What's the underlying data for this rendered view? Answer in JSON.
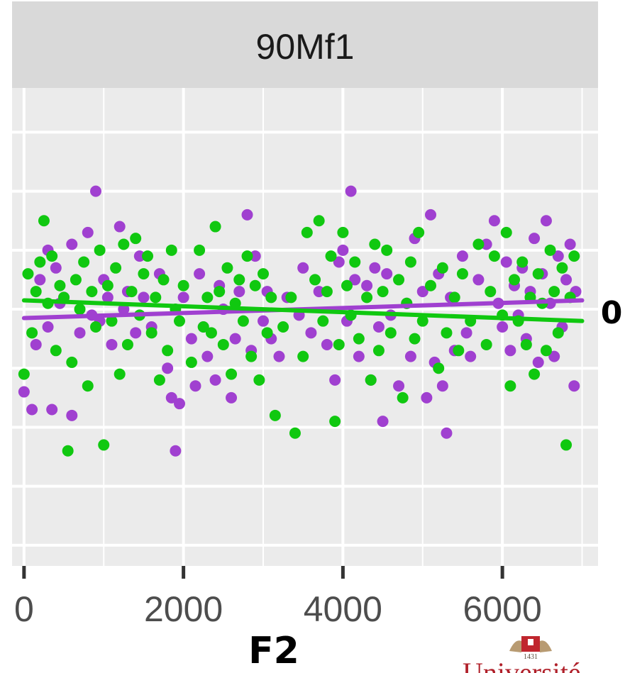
{
  "facet": {
    "title": "90Mf1"
  },
  "right_label": "0",
  "logo": {
    "text": "Université",
    "year": "1431"
  },
  "colors": {
    "purple": "#a040d0",
    "green": "#10c810",
    "panel_bg": "#ebebeb",
    "strip_bg": "#d9d9d9",
    "grid": "#ffffff"
  },
  "chart_data": {
    "type": "scatter",
    "title": "90Mf1",
    "xlabel": "F2",
    "ylabel": "",
    "xlim": [
      -150,
      7200
    ],
    "ylim": [
      -4.35,
      3.75
    ],
    "x_ticks": [
      0,
      2000,
      4000,
      6000
    ],
    "x_tick_labels": [
      "0",
      "2000",
      "4000",
      "6000"
    ],
    "y_gridlines": [
      -4,
      -3,
      -2,
      -1,
      0,
      1,
      2,
      3
    ],
    "grid": true,
    "series": [
      {
        "color": "#a040d0",
        "trend": {
          "x": [
            0,
            7000
          ],
          "y": [
            -0.15,
            0.15
          ]
        },
        "points": [
          [
            0,
            -1.4
          ],
          [
            100,
            -1.7
          ],
          [
            150,
            -0.6
          ],
          [
            200,
            0.5
          ],
          [
            300,
            1
          ],
          [
            300,
            -0.3
          ],
          [
            350,
            -1.7
          ],
          [
            400,
            0.7
          ],
          [
            450,
            0.1
          ],
          [
            500,
            0.2
          ],
          [
            600,
            -1.8
          ],
          [
            600,
            1.1
          ],
          [
            700,
            -0.4
          ],
          [
            800,
            1.3
          ],
          [
            850,
            -0.1
          ],
          [
            900,
            2
          ],
          [
            950,
            -0.2
          ],
          [
            1000,
            0.5
          ],
          [
            1050,
            0.2
          ],
          [
            1100,
            -0.6
          ],
          [
            1200,
            1.4
          ],
          [
            1250,
            0
          ],
          [
            1300,
            0.3
          ],
          [
            1400,
            -0.4
          ],
          [
            1450,
            0.9
          ],
          [
            1500,
            0.2
          ],
          [
            1600,
            -0.3
          ],
          [
            1700,
            0.6
          ],
          [
            1800,
            -1
          ],
          [
            1850,
            -1.5
          ],
          [
            1900,
            -2.4
          ],
          [
            1950,
            -1.6
          ],
          [
            2000,
            0.2
          ],
          [
            2100,
            -0.5
          ],
          [
            2150,
            -1.3
          ],
          [
            2200,
            0.6
          ],
          [
            2250,
            -0.3
          ],
          [
            2300,
            -0.8
          ],
          [
            2400,
            -1.2
          ],
          [
            2450,
            0.4
          ],
          [
            2500,
            0
          ],
          [
            2600,
            -1.5
          ],
          [
            2650,
            -0.5
          ],
          [
            2700,
            0.3
          ],
          [
            2800,
            1.6
          ],
          [
            2850,
            -0.7
          ],
          [
            2900,
            0.9
          ],
          [
            3000,
            -0.2
          ],
          [
            3050,
            0.3
          ],
          [
            3100,
            -0.5
          ],
          [
            3200,
            -0.8
          ],
          [
            3300,
            0.2
          ],
          [
            3450,
            -0.1
          ],
          [
            3500,
            0.7
          ],
          [
            3600,
            -0.4
          ],
          [
            3700,
            0.3
          ],
          [
            3800,
            -0.6
          ],
          [
            3900,
            -1.2
          ],
          [
            3950,
            0.8
          ],
          [
            4000,
            1
          ],
          [
            4050,
            -0.2
          ],
          [
            4100,
            2
          ],
          [
            4150,
            0.5
          ],
          [
            4200,
            -0.8
          ],
          [
            4300,
            0.4
          ],
          [
            4350,
            -1.2
          ],
          [
            4400,
            0.7
          ],
          [
            4450,
            -0.3
          ],
          [
            4500,
            -1.9
          ],
          [
            4550,
            0.6
          ],
          [
            4600,
            -0.1
          ],
          [
            4700,
            -1.3
          ],
          [
            4800,
            0.1
          ],
          [
            4850,
            -0.8
          ],
          [
            4900,
            1.2
          ],
          [
            5000,
            0.3
          ],
          [
            5050,
            -1.5
          ],
          [
            5100,
            1.6
          ],
          [
            5150,
            -0.9
          ],
          [
            5200,
            0.6
          ],
          [
            5250,
            -1.3
          ],
          [
            5300,
            -2.1
          ],
          [
            5350,
            0.2
          ],
          [
            5400,
            -0.7
          ],
          [
            5500,
            0.9
          ],
          [
            5550,
            -0.4
          ],
          [
            5600,
            -0.8
          ],
          [
            5700,
            0.5
          ],
          [
            5800,
            1.1
          ],
          [
            5900,
            1.5
          ],
          [
            5950,
            0.1
          ],
          [
            6000,
            -0.3
          ],
          [
            6050,
            0.8
          ],
          [
            6100,
            -0.7
          ],
          [
            6150,
            0.4
          ],
          [
            6200,
            -0.1
          ],
          [
            6250,
            0.7
          ],
          [
            6300,
            -0.5
          ],
          [
            6350,
            0.3
          ],
          [
            6400,
            1.2
          ],
          [
            6450,
            -0.9
          ],
          [
            6500,
            0.6
          ],
          [
            6550,
            1.5
          ],
          [
            6600,
            0.1
          ],
          [
            6650,
            -0.8
          ],
          [
            6700,
            0.9
          ],
          [
            6750,
            -0.3
          ],
          [
            6800,
            0.5
          ],
          [
            6850,
            1.1
          ],
          [
            6900,
            -1.3
          ],
          [
            6920,
            0.3
          ]
        ]
      },
      {
        "color": "#10c810",
        "trend": {
          "x": [
            0,
            7000
          ],
          "y": [
            0.15,
            -0.2
          ]
        },
        "points": [
          [
            0,
            -1.1
          ],
          [
            50,
            0.6
          ],
          [
            100,
            -0.4
          ],
          [
            150,
            0.3
          ],
          [
            200,
            0.8
          ],
          [
            250,
            1.5
          ],
          [
            300,
            0.1
          ],
          [
            350,
            0.9
          ],
          [
            400,
            -0.7
          ],
          [
            450,
            0.4
          ],
          [
            500,
            0.2
          ],
          [
            550,
            -2.4
          ],
          [
            600,
            -0.9
          ],
          [
            650,
            0.5
          ],
          [
            700,
            0
          ],
          [
            750,
            0.8
          ],
          [
            800,
            -1.3
          ],
          [
            850,
            0.3
          ],
          [
            900,
            -0.3
          ],
          [
            950,
            1
          ],
          [
            1000,
            -2.3
          ],
          [
            1050,
            0.4
          ],
          [
            1100,
            -0.2
          ],
          [
            1150,
            0.7
          ],
          [
            1200,
            -1.1
          ],
          [
            1250,
            1.1
          ],
          [
            1300,
            -0.6
          ],
          [
            1350,
            0.3
          ],
          [
            1400,
            1.2
          ],
          [
            1450,
            -0.1
          ],
          [
            1500,
            0.6
          ],
          [
            1550,
            0.9
          ],
          [
            1600,
            -0.4
          ],
          [
            1650,
            0.2
          ],
          [
            1700,
            -1.2
          ],
          [
            1750,
            0.5
          ],
          [
            1800,
            -0.7
          ],
          [
            1850,
            1
          ],
          [
            1900,
            0
          ],
          [
            1950,
            -0.2
          ],
          [
            2000,
            0.4
          ],
          [
            2100,
            -0.9
          ],
          [
            2200,
            1
          ],
          [
            2250,
            -0.3
          ],
          [
            2300,
            0.2
          ],
          [
            2350,
            -0.4
          ],
          [
            2400,
            1.4
          ],
          [
            2450,
            0.3
          ],
          [
            2500,
            -0.6
          ],
          [
            2550,
            0.7
          ],
          [
            2600,
            -1.1
          ],
          [
            2650,
            0.1
          ],
          [
            2700,
            0.5
          ],
          [
            2750,
            -0.2
          ],
          [
            2800,
            0.9
          ],
          [
            2850,
            -0.8
          ],
          [
            2900,
            0.4
          ],
          [
            2950,
            -1.2
          ],
          [
            3000,
            0.6
          ],
          [
            3050,
            -0.4
          ],
          [
            3100,
            0.2
          ],
          [
            3150,
            -1.8
          ],
          [
            3250,
            -0.3
          ],
          [
            3350,
            0.2
          ],
          [
            3400,
            -2.1
          ],
          [
            3500,
            -0.8
          ],
          [
            3550,
            1.3
          ],
          [
            3650,
            0.5
          ],
          [
            3700,
            1.5
          ],
          [
            3750,
            -0.2
          ],
          [
            3800,
            0.3
          ],
          [
            3850,
            0.9
          ],
          [
            3900,
            -1.9
          ],
          [
            3950,
            -0.6
          ],
          [
            4000,
            1.3
          ],
          [
            4050,
            0.4
          ],
          [
            4100,
            -0.1
          ],
          [
            4150,
            0.8
          ],
          [
            4200,
            -0.5
          ],
          [
            4300,
            0.2
          ],
          [
            4350,
            -1.2
          ],
          [
            4400,
            1.1
          ],
          [
            4450,
            -0.7
          ],
          [
            4500,
            0.3
          ],
          [
            4550,
            1
          ],
          [
            4600,
            -0.4
          ],
          [
            4700,
            0.5
          ],
          [
            4750,
            -1.5
          ],
          [
            4800,
            0.1
          ],
          [
            4850,
            0.8
          ],
          [
            4900,
            -0.5
          ],
          [
            4950,
            1.3
          ],
          [
            5000,
            -0.2
          ],
          [
            5100,
            0.4
          ],
          [
            5200,
            -1
          ],
          [
            5250,
            0.7
          ],
          [
            5300,
            -0.4
          ],
          [
            5400,
            0.2
          ],
          [
            5450,
            -0.7
          ],
          [
            5500,
            0.6
          ],
          [
            5600,
            -0.2
          ],
          [
            5700,
            1.1
          ],
          [
            5800,
            -0.6
          ],
          [
            5850,
            0.3
          ],
          [
            5900,
            0.9
          ],
          [
            6000,
            -0.1
          ],
          [
            6050,
            1.3
          ],
          [
            6100,
            -1.3
          ],
          [
            6150,
            0.5
          ],
          [
            6200,
            -0.2
          ],
          [
            6250,
            0.8
          ],
          [
            6300,
            -0.6
          ],
          [
            6350,
            0.2
          ],
          [
            6400,
            -1.1
          ],
          [
            6450,
            0.6
          ],
          [
            6500,
            0.1
          ],
          [
            6550,
            -0.7
          ],
          [
            6600,
            1
          ],
          [
            6650,
            0.3
          ],
          [
            6700,
            -0.4
          ],
          [
            6750,
            0.7
          ],
          [
            6800,
            -2.3
          ],
          [
            6850,
            0.2
          ],
          [
            6900,
            0.9
          ]
        ]
      }
    ]
  }
}
